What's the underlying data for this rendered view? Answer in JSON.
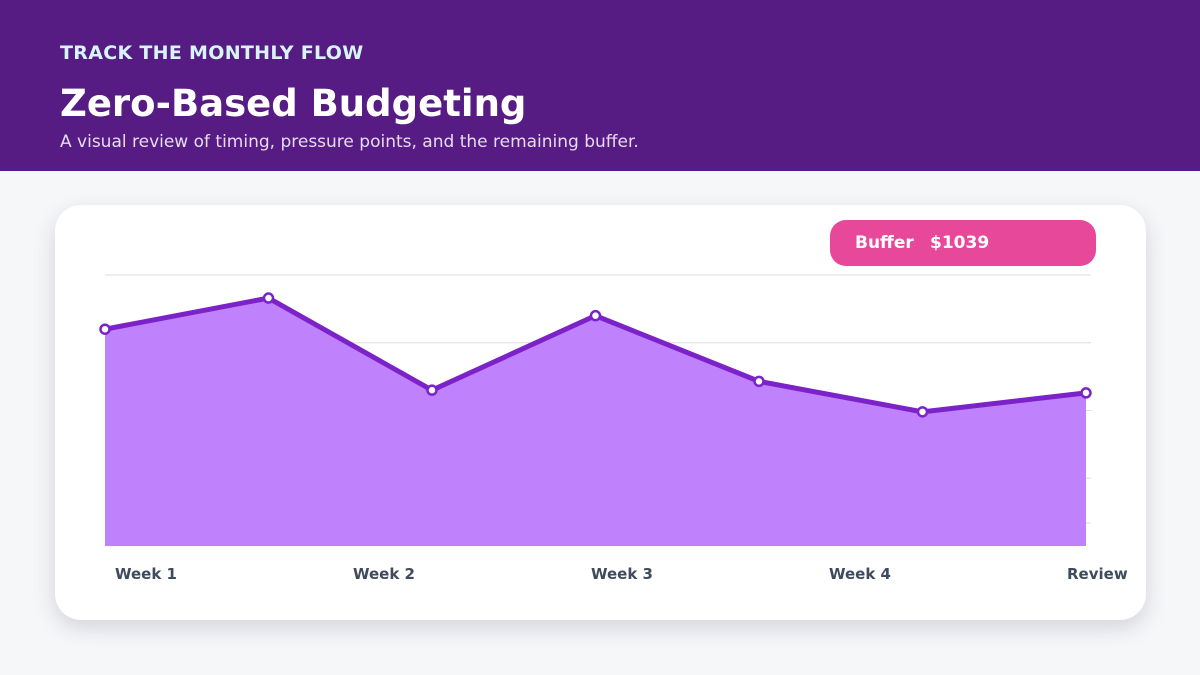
{
  "header": {
    "eyebrow": "TRACK THE MONTHLY FLOW",
    "title": "Zero-Based Budgeting",
    "subtitle": "A visual review of timing, pressure points, and the remaining buffer."
  },
  "buffer": {
    "label": "Buffer",
    "value": "$1039"
  },
  "colors": {
    "header_bg": "#561c84",
    "line": "#7b22c8",
    "area": "#c082fc",
    "pill": "#e8489a"
  },
  "chart_data": {
    "type": "area",
    "title": "",
    "xlabel": "",
    "ylabel": "",
    "x_tick_labels": [
      "Week 1",
      "Week 2",
      "Week 3",
      "Week 4",
      "Review"
    ],
    "series": [
      {
        "values": [
          1600,
          1830,
          1150,
          1700,
          1215,
          990,
          1130
        ]
      }
    ],
    "ylim": [
      0,
      2000
    ],
    "grid": true
  }
}
